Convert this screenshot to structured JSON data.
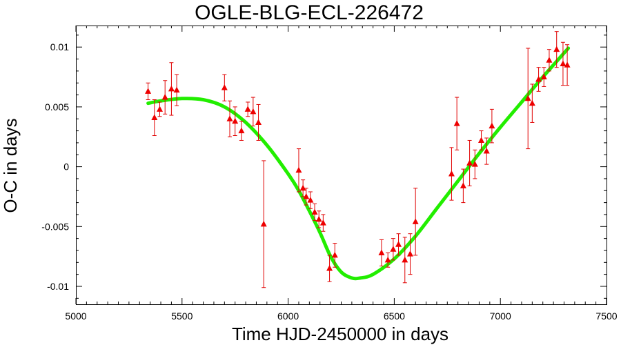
{
  "chart_data": {
    "type": "scatter",
    "title": "OGLE-BLG-ECL-226472",
    "xlabel": "Time HJD-2450000 in days",
    "ylabel": "O-C in days",
    "xlim": [
      5000,
      7500
    ],
    "ylim": [
      -0.0115,
      0.0118
    ],
    "x_ticks": [
      5000,
      5500,
      6000,
      6500,
      7000,
      7500
    ],
    "x_tick_labels": [
      "5000",
      "5500",
      "6000",
      "6500",
      "7000",
      "7500"
    ],
    "y_ticks": [
      -0.01,
      -0.005,
      0,
      0.005,
      0.01
    ],
    "y_tick_labels": [
      "-0.01",
      "-0.005",
      "0",
      "0.005",
      "0.01"
    ],
    "grid": false,
    "colors": {
      "points": "#ee0000",
      "errorbars": "#e00000",
      "fit": "#22ee00"
    },
    "series": [
      {
        "kind": "points-with-errorbars",
        "points": [
          {
            "x": 5340,
            "y": 0.0063,
            "yerr": 0.0007
          },
          {
            "x": 5370,
            "y": 0.0041,
            "yerr": 0.0015
          },
          {
            "x": 5395,
            "y": 0.0048,
            "yerr": 0.0006
          },
          {
            "x": 5420,
            "y": 0.0058,
            "yerr": 0.0014
          },
          {
            "x": 5450,
            "y": 0.0065,
            "yerr": 0.0022
          },
          {
            "x": 5475,
            "y": 0.0064,
            "yerr": 0.0013
          },
          {
            "x": 5700,
            "y": 0.0066,
            "yerr": 0.0011
          },
          {
            "x": 5725,
            "y": 0.004,
            "yerr": 0.0015
          },
          {
            "x": 5750,
            "y": 0.0038,
            "yerr": 0.0012
          },
          {
            "x": 5780,
            "y": 0.003,
            "yerr": 0.0008
          },
          {
            "x": 5810,
            "y": 0.0048,
            "yerr": 0.0006
          },
          {
            "x": 5835,
            "y": 0.0046,
            "yerr": 0.0012
          },
          {
            "x": 5860,
            "y": 0.0037,
            "yerr": 0.0015
          },
          {
            "x": 5885,
            "y": -0.0048,
            "yerr": 0.0053
          },
          {
            "x": 6050,
            "y": -0.0003,
            "yerr": 0.0018
          },
          {
            "x": 6070,
            "y": -0.0018,
            "yerr": 0.0007
          },
          {
            "x": 6085,
            "y": -0.0025,
            "yerr": 0.0007
          },
          {
            "x": 6105,
            "y": -0.0028,
            "yerr": 0.0007
          },
          {
            "x": 6125,
            "y": -0.0038,
            "yerr": 0.0007
          },
          {
            "x": 6145,
            "y": -0.0044,
            "yerr": 0.0007
          },
          {
            "x": 6165,
            "y": -0.0047,
            "yerr": 0.0007
          },
          {
            "x": 6195,
            "y": -0.0085,
            "yerr": 0.0011
          },
          {
            "x": 6220,
            "y": -0.0074,
            "yerr": 0.001
          },
          {
            "x": 6440,
            "y": -0.0072,
            "yerr": 0.0011
          },
          {
            "x": 6470,
            "y": -0.0078,
            "yerr": 0.0006
          },
          {
            "x": 6495,
            "y": -0.0069,
            "yerr": 0.0009
          },
          {
            "x": 6520,
            "y": -0.0065,
            "yerr": 0.0009
          },
          {
            "x": 6550,
            "y": -0.0078,
            "yerr": 0.0019
          },
          {
            "x": 6575,
            "y": -0.0073,
            "yerr": 0.0017
          },
          {
            "x": 6600,
            "y": -0.0046,
            "yerr": 0.0028
          },
          {
            "x": 6770,
            "y": -0.0006,
            "yerr": 0.0022
          },
          {
            "x": 6795,
            "y": 0.0036,
            "yerr": 0.0022
          },
          {
            "x": 6825,
            "y": -0.0016,
            "yerr": 0.0014
          },
          {
            "x": 6855,
            "y": 0.0003,
            "yerr": 0.0019
          },
          {
            "x": 6880,
            "y": 0.0002,
            "yerr": 0.0012
          },
          {
            "x": 6910,
            "y": 0.0022,
            "yerr": 0.0008
          },
          {
            "x": 6935,
            "y": 0.0013,
            "yerr": 0.0011
          },
          {
            "x": 6960,
            "y": 0.0034,
            "yerr": 0.0014
          },
          {
            "x": 7130,
            "y": 0.0057,
            "yerr": 0.0042
          },
          {
            "x": 7150,
            "y": 0.0053,
            "yerr": 0.0016
          },
          {
            "x": 7180,
            "y": 0.0073,
            "yerr": 0.001
          },
          {
            "x": 7205,
            "y": 0.0075,
            "yerr": 0.0008
          },
          {
            "x": 7230,
            "y": 0.0089,
            "yerr": 0.0009
          },
          {
            "x": 7265,
            "y": 0.0098,
            "yerr": 0.0015
          },
          {
            "x": 7295,
            "y": 0.0086,
            "yerr": 0.0018
          },
          {
            "x": 7315,
            "y": 0.0085,
            "yerr": 0.0017
          }
        ]
      },
      {
        "kind": "fit-curve",
        "points": [
          {
            "x": 5340,
            "y": 0.0053
          },
          {
            "x": 5400,
            "y": 0.0055
          },
          {
            "x": 5500,
            "y": 0.0057
          },
          {
            "x": 5600,
            "y": 0.0056
          },
          {
            "x": 5700,
            "y": 0.005
          },
          {
            "x": 5800,
            "y": 0.0037
          },
          {
            "x": 5900,
            "y": 0.0018
          },
          {
            "x": 6000,
            "y": -0.0006
          },
          {
            "x": 6050,
            "y": -0.002
          },
          {
            "x": 6100,
            "y": -0.0037
          },
          {
            "x": 6150,
            "y": -0.0055
          },
          {
            "x": 6200,
            "y": -0.0075
          },
          {
            "x": 6250,
            "y": -0.0088
          },
          {
            "x": 6300,
            "y": -0.0093
          },
          {
            "x": 6340,
            "y": -0.0093
          },
          {
            "x": 6400,
            "y": -0.009
          },
          {
            "x": 6500,
            "y": -0.0077
          },
          {
            "x": 6600,
            "y": -0.0058
          },
          {
            "x": 6700,
            "y": -0.0035
          },
          {
            "x": 6800,
            "y": -0.0012
          },
          {
            "x": 6900,
            "y": 0.0011
          },
          {
            "x": 7000,
            "y": 0.0033
          },
          {
            "x": 7100,
            "y": 0.0054
          },
          {
            "x": 7200,
            "y": 0.0075
          },
          {
            "x": 7320,
            "y": 0.0099
          }
        ]
      }
    ]
  }
}
